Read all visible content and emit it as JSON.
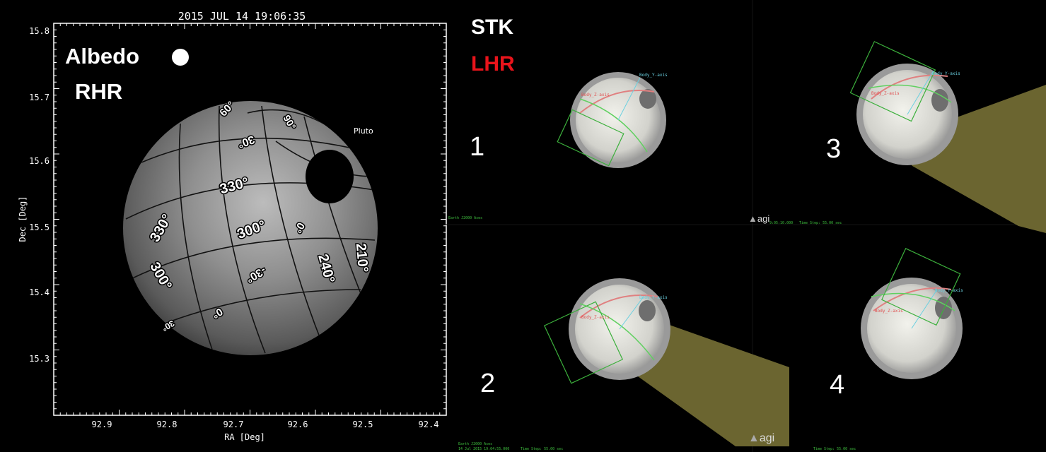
{
  "plot": {
    "title": "2015 JUL 14 19:06:35",
    "xlabel": "RA [Deg]",
    "ylabel": "Dec [Deg]",
    "xticks": [
      "92.9",
      "92.8",
      "92.7",
      "92.6",
      "92.5",
      "92.4"
    ],
    "yticks": [
      "15.8",
      "15.7",
      "15.6",
      "15.5",
      "15.4",
      "15.3"
    ],
    "target_label": "Pluto",
    "albedo_label": "Albedo",
    "frame_label": "RHR",
    "longitude_labels": [
      "330°",
      "300°",
      "330°",
      "300°",
      "240°",
      "210°",
      "60°",
      "90°",
      "30°",
      "0°",
      "-30°",
      "0°",
      "30°"
    ]
  },
  "stk": {
    "title": "STK",
    "subtitle": "LHR",
    "subtitle_color": "#e8141b",
    "panels": [
      {
        "number": "1"
      },
      {
        "number": "3"
      },
      {
        "number": "2"
      },
      {
        "number": "4"
      }
    ],
    "axis_label_z": "Body_Z-axis",
    "axis_label_y": "Body_Y-axis",
    "status_earth": "Earth J2000 Axes",
    "status_date": "14 Jul 2015 19:04:55.000",
    "status_time1": "9:05:10.000",
    "status_step": "Time Step: 55.00 sec",
    "brand": "agi"
  }
}
